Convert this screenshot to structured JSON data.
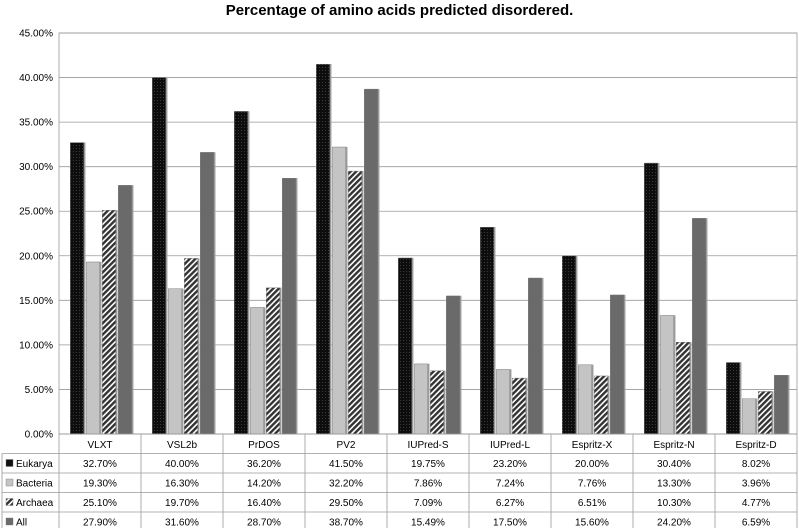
{
  "chart_data": {
    "type": "bar",
    "title": "Percentage of amino acids predicted disordered.",
    "categories": [
      "VLXT",
      "VSL2b",
      "PrDOS",
      "PV2",
      "IUPred-S",
      "IUPred-L",
      "Espritz-X",
      "Espritz-N",
      "Espritz-D"
    ],
    "series": [
      {
        "name": "Eukarya",
        "values": [
          32.7,
          40.0,
          36.2,
          41.5,
          19.75,
          23.2,
          20.0,
          30.4,
          8.02
        ],
        "labels": [
          "32.70%",
          "40.00%",
          "36.20%",
          "41.50%",
          "19.75%",
          "23.20%",
          "20.00%",
          "30.40%",
          "8.02%"
        ]
      },
      {
        "name": "Bacteria",
        "values": [
          19.3,
          16.3,
          14.2,
          32.2,
          7.86,
          7.24,
          7.76,
          13.3,
          3.96
        ],
        "labels": [
          "19.30%",
          "16.30%",
          "14.20%",
          "32.20%",
          "7.86%",
          "7.24%",
          "7.76%",
          "13.30%",
          "3.96%"
        ]
      },
      {
        "name": "Archaea",
        "values": [
          25.1,
          19.7,
          16.4,
          29.5,
          7.09,
          6.27,
          6.51,
          10.3,
          4.77
        ],
        "labels": [
          "25.10%",
          "19.70%",
          "16.40%",
          "29.50%",
          "7.09%",
          "6.27%",
          "6.51%",
          "10.30%",
          "4.77%"
        ]
      },
      {
        "name": "All",
        "values": [
          27.9,
          31.6,
          28.7,
          38.7,
          15.49,
          17.5,
          15.6,
          24.2,
          6.59
        ],
        "labels": [
          "27.90%",
          "31.60%",
          "28.70%",
          "38.70%",
          "15.49%",
          "17.50%",
          "15.60%",
          "24.20%",
          "6.59%"
        ]
      }
    ],
    "ylim": [
      0,
      45
    ],
    "yticks": [
      "0.00%",
      "5.00%",
      "10.00%",
      "15.00%",
      "20.00%",
      "25.00%",
      "30.00%",
      "35.00%",
      "40.00%",
      "45.00%"
    ],
    "grid": true,
    "legend": "data-table",
    "colors": {
      "Eukarya": "#111111",
      "Bacteria": "#c4c4c4",
      "Archaea": "#4a4a4a",
      "All": "#6a6a6a"
    }
  }
}
